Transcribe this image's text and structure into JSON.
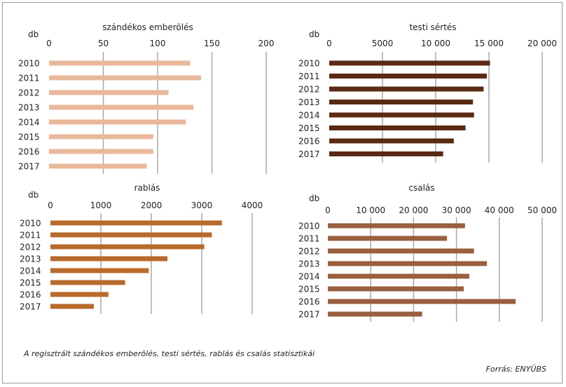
{
  "caption": "A regisztrált szándékos emberölés, testi sértés, rablás és csalás statisztikái",
  "source": "Forrás: ENYÜBS",
  "chart_data": [
    {
      "type": "bar",
      "orientation": "horizontal",
      "title": "szándékos emberölés",
      "unit": "db",
      "color": "#e9b89a",
      "categories": [
        "2010",
        "2011",
        "2012",
        "2013",
        "2014",
        "2015",
        "2016",
        "2017"
      ],
      "values": [
        130,
        140,
        110,
        133,
        126,
        96,
        96,
        90
      ],
      "xlim": [
        0,
        200
      ],
      "ticks": [
        0,
        50,
        100,
        150,
        200
      ],
      "tick_labels": [
        "0",
        "50",
        "100",
        "150",
        "200"
      ]
    },
    {
      "type": "bar",
      "orientation": "horizontal",
      "title": "testi sértés",
      "unit": "db",
      "color": "#5a2a12",
      "categories": [
        "2010",
        "2011",
        "2012",
        "2013",
        "2014",
        "2015",
        "2016",
        "2017"
      ],
      "values": [
        15100,
        14800,
        14500,
        13500,
        13600,
        12800,
        11700,
        10700
      ],
      "xlim": [
        0,
        20000
      ],
      "ticks": [
        0,
        5000,
        10000,
        15000,
        20000
      ],
      "tick_labels": [
        "0",
        "5000",
        "10 000",
        "15 000",
        "20 000"
      ]
    },
    {
      "type": "bar",
      "orientation": "horizontal",
      "title": "rablás",
      "unit": "db",
      "color": "#b86a2b",
      "categories": [
        "2010",
        "2011",
        "2012",
        "2013",
        "2014",
        "2015",
        "2016",
        "2017"
      ],
      "values": [
        3400,
        3200,
        3050,
        2320,
        1950,
        1480,
        1150,
        860
      ],
      "xlim": [
        0,
        4000
      ],
      "ticks": [
        0,
        1000,
        2000,
        3000,
        4000
      ],
      "tick_labels": [
        "0",
        "1000",
        "2000",
        "3000",
        "4000"
      ]
    },
    {
      "type": "bar",
      "orientation": "horizontal",
      "title": "csalás",
      "unit": "db",
      "color": "#9a5f3e",
      "categories": [
        "2010",
        "2011",
        "2012",
        "2013",
        "2014",
        "2015",
        "2016",
        "2017"
      ],
      "values": [
        32000,
        27800,
        34100,
        37100,
        33000,
        31700,
        43800,
        22000
      ],
      "xlim": [
        0,
        50000
      ],
      "ticks": [
        0,
        10000,
        20000,
        30000,
        40000,
        50000
      ],
      "tick_labels": [
        "0",
        "10 000",
        "20 000",
        "30 000",
        "40 000",
        "50 000"
      ]
    }
  ]
}
